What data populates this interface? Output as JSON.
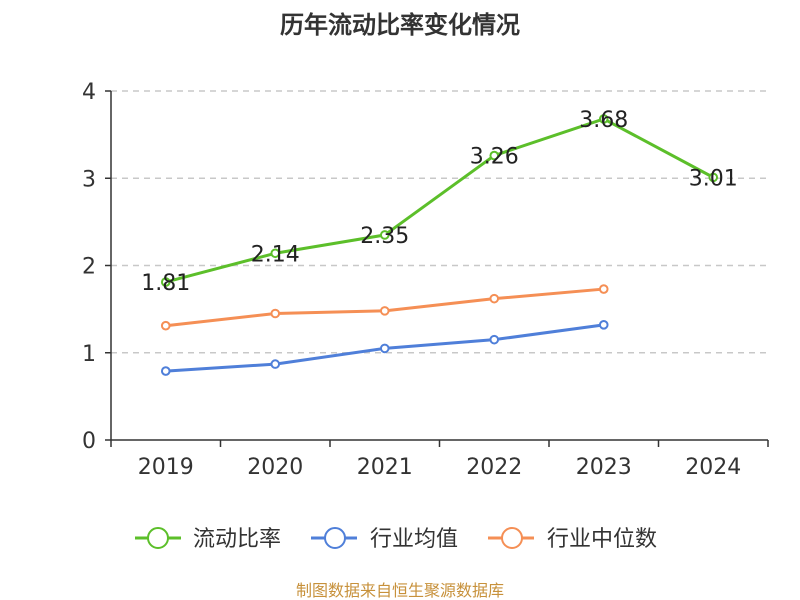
{
  "chart_data": {
    "type": "line",
    "title": "历年流动比率变化情况",
    "categories": [
      "2019",
      "2020",
      "2021",
      "2022",
      "2023",
      "2024"
    ],
    "ylim": [
      0,
      4
    ],
    "yticks": [
      0,
      1,
      2,
      3,
      4
    ],
    "grid": true,
    "legend_position": "bottom",
    "series": [
      {
        "name": "流动比率",
        "color": "#5cbf2a",
        "values": [
          1.81,
          2.14,
          2.35,
          3.26,
          3.68,
          3.01
        ],
        "labels": [
          "1.81",
          "2.14",
          "2.35",
          "3.26",
          "3.68",
          "3.01"
        ]
      },
      {
        "name": "行业均值",
        "color": "#4f7fd9",
        "values": [
          0.79,
          0.87,
          1.05,
          1.15,
          1.32,
          null
        ]
      },
      {
        "name": "行业中位数",
        "color": "#f58f55",
        "values": [
          1.31,
          1.45,
          1.48,
          1.62,
          1.73,
          null
        ]
      }
    ]
  },
  "footer": "制图数据来自恒生聚源数据库"
}
